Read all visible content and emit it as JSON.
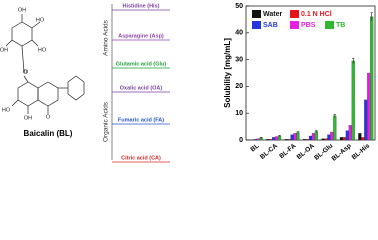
{
  "structure": {
    "name": "Baicalin (BL)",
    "atoms": [
      "HO",
      "O",
      "OH",
      "OH",
      "HO",
      "O",
      "HO",
      "OH",
      "O"
    ]
  },
  "groups": [
    {
      "label": "Amino Acids",
      "items": [
        {
          "label": "Histidine (His)",
          "color": "#7b3f9e"
        },
        {
          "label": "Asparagine (Asp)",
          "color": "#8e44ad"
        },
        {
          "label": "Glutamic acid (Glu)",
          "color": "#1e9e3a"
        }
      ]
    },
    {
      "label": "Organic Acids",
      "items": [
        {
          "label": "Oxalic acid (OA)",
          "color": "#7b3f9e"
        },
        {
          "label": "Fumaric acid (FA)",
          "color": "#2455c8"
        },
        {
          "label": "Citric acid (CA)",
          "color": "#d62828"
        }
      ]
    }
  ],
  "chart_data": {
    "type": "bar",
    "y_label": "Solubility [mg/mL]",
    "categories": [
      "BL",
      "BL-CA",
      "BL-FA",
      "BL-OA",
      "BL-Glu",
      "BL-Asp",
      "BL-His"
    ],
    "series": [
      {
        "name": "Water",
        "color": "#111111",
        "values": [
          0.1,
          0.3,
          0.3,
          0.3,
          0.5,
          1.0,
          2.5
        ]
      },
      {
        "name": "0.1 N HCl",
        "color": "#e8141c",
        "values": [
          0.1,
          0.3,
          0.3,
          0.3,
          0.5,
          1.0,
          1.0
        ]
      },
      {
        "name": "SAB",
        "color": "#2436e0",
        "values": [
          0.3,
          1.0,
          2.0,
          1.5,
          2.0,
          3.5,
          15.0
        ]
      },
      {
        "name": "PBS",
        "color": "#e61ee0",
        "values": [
          0.5,
          1.3,
          2.5,
          2.5,
          3.0,
          5.5,
          25.0
        ]
      },
      {
        "name": "TB",
        "color": "#2fb82f",
        "values": [
          0.8,
          1.5,
          2.8,
          3.2,
          9.0,
          29.5,
          46.0
        ],
        "errors": [
          0.2,
          0.2,
          0.3,
          0.3,
          0.5,
          1.0,
          1.5
        ]
      }
    ],
    "ylim": [
      0,
      50
    ],
    "yticks": [
      0,
      10,
      20,
      30,
      40,
      50
    ]
  }
}
